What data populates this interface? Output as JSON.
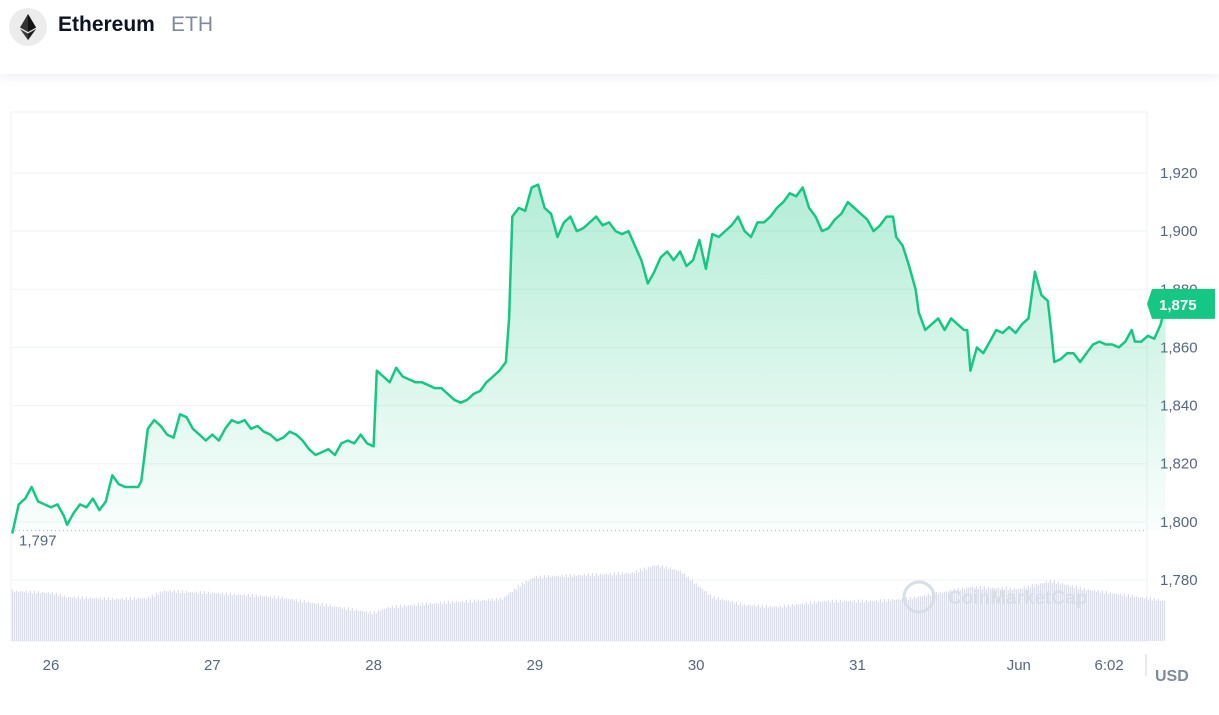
{
  "header": {
    "coin_name": "Ethereum",
    "coin_symbol": "ETH",
    "logo_icon": "ethereum-icon"
  },
  "colors": {
    "line": "#16c784",
    "fill_top": "#16c784",
    "grid": "#eff2f5",
    "volume": "#cfd6e4",
    "text": "#58667e"
  },
  "chart_data": {
    "type": "area",
    "title": "",
    "xlabel": "",
    "ylabel": "USD",
    "currency_label": "USD",
    "ylim": [
      1765,
      1930
    ],
    "y_ticks": [
      1780,
      1800,
      1820,
      1840,
      1860,
      1880,
      1900,
      1920
    ],
    "y_tick_labels": [
      "1,780",
      "1,800",
      "1,820",
      "1,840",
      "1,860",
      "1,880",
      "1,900",
      "1,920"
    ],
    "x_ticks": [
      {
        "t": 0.0,
        "label": "26"
      },
      {
        "t": 1.0,
        "label": "27"
      },
      {
        "t": 2.0,
        "label": "28"
      },
      {
        "t": 3.0,
        "label": "29"
      },
      {
        "t": 4.0,
        "label": "30"
      },
      {
        "t": 5.0,
        "label": "31"
      },
      {
        "t": 6.0,
        "label": "Jun"
      },
      {
        "t": 6.56,
        "label": "6:02"
      }
    ],
    "x_unit": "days since May 26",
    "current_price": 1875,
    "current_price_label": "1,875",
    "open_price": 1797,
    "open_price_label": "1,797",
    "watermark": "CoinMarketCap",
    "series": [
      {
        "name": "Price",
        "points": [
          [
            -0.24,
            1796
          ],
          [
            -0.2,
            1806
          ],
          [
            -0.16,
            1808
          ],
          [
            -0.12,
            1812
          ],
          [
            -0.08,
            1807
          ],
          [
            -0.04,
            1806
          ],
          [
            0.0,
            1805
          ],
          [
            0.04,
            1806
          ],
          [
            0.08,
            1802
          ],
          [
            0.1,
            1799
          ],
          [
            0.14,
            1803
          ],
          [
            0.18,
            1806
          ],
          [
            0.22,
            1805
          ],
          [
            0.26,
            1808
          ],
          [
            0.3,
            1804
          ],
          [
            0.34,
            1807
          ],
          [
            0.38,
            1816
          ],
          [
            0.42,
            1813
          ],
          [
            0.46,
            1812
          ],
          [
            0.5,
            1812
          ],
          [
            0.54,
            1812
          ],
          [
            0.56,
            1814
          ],
          [
            0.6,
            1832
          ],
          [
            0.64,
            1835
          ],
          [
            0.68,
            1833
          ],
          [
            0.72,
            1830
          ],
          [
            0.76,
            1829
          ],
          [
            0.8,
            1837
          ],
          [
            0.84,
            1836
          ],
          [
            0.88,
            1832
          ],
          [
            0.92,
            1830
          ],
          [
            0.96,
            1828
          ],
          [
            1.0,
            1830
          ],
          [
            1.04,
            1828
          ],
          [
            1.08,
            1832
          ],
          [
            1.12,
            1835
          ],
          [
            1.16,
            1834
          ],
          [
            1.2,
            1835
          ],
          [
            1.24,
            1832
          ],
          [
            1.28,
            1833
          ],
          [
            1.32,
            1831
          ],
          [
            1.36,
            1830
          ],
          [
            1.4,
            1828
          ],
          [
            1.44,
            1829
          ],
          [
            1.48,
            1831
          ],
          [
            1.52,
            1830
          ],
          [
            1.56,
            1828
          ],
          [
            1.6,
            1825
          ],
          [
            1.64,
            1823
          ],
          [
            1.68,
            1824
          ],
          [
            1.72,
            1825
          ],
          [
            1.76,
            1823
          ],
          [
            1.8,
            1827
          ],
          [
            1.84,
            1828
          ],
          [
            1.88,
            1827
          ],
          [
            1.92,
            1830
          ],
          [
            1.96,
            1827
          ],
          [
            2.0,
            1826
          ],
          [
            2.02,
            1852
          ],
          [
            2.06,
            1850
          ],
          [
            2.1,
            1848
          ],
          [
            2.14,
            1853
          ],
          [
            2.18,
            1850
          ],
          [
            2.22,
            1849
          ],
          [
            2.26,
            1848
          ],
          [
            2.3,
            1848
          ],
          [
            2.34,
            1847
          ],
          [
            2.38,
            1846
          ],
          [
            2.42,
            1846
          ],
          [
            2.46,
            1844
          ],
          [
            2.5,
            1842
          ],
          [
            2.54,
            1841
          ],
          [
            2.58,
            1842
          ],
          [
            2.62,
            1844
          ],
          [
            2.66,
            1845
          ],
          [
            2.7,
            1848
          ],
          [
            2.74,
            1850
          ],
          [
            2.78,
            1852
          ],
          [
            2.82,
            1855
          ],
          [
            2.84,
            1870
          ],
          [
            2.86,
            1905
          ],
          [
            2.9,
            1908
          ],
          [
            2.94,
            1907
          ],
          [
            2.98,
            1915
          ],
          [
            3.02,
            1916
          ],
          [
            3.06,
            1908
          ],
          [
            3.1,
            1906
          ],
          [
            3.14,
            1898
          ],
          [
            3.18,
            1903
          ],
          [
            3.22,
            1905
          ],
          [
            3.26,
            1900
          ],
          [
            3.3,
            1901
          ],
          [
            3.34,
            1903
          ],
          [
            3.38,
            1905
          ],
          [
            3.42,
            1902
          ],
          [
            3.46,
            1903
          ],
          [
            3.5,
            1900
          ],
          [
            3.54,
            1899
          ],
          [
            3.58,
            1900
          ],
          [
            3.62,
            1895
          ],
          [
            3.66,
            1890
          ],
          [
            3.7,
            1882
          ],
          [
            3.74,
            1886
          ],
          [
            3.78,
            1891
          ],
          [
            3.82,
            1893
          ],
          [
            3.86,
            1890
          ],
          [
            3.9,
            1893
          ],
          [
            3.94,
            1888
          ],
          [
            3.98,
            1890
          ],
          [
            4.02,
            1897
          ],
          [
            4.06,
            1887
          ],
          [
            4.1,
            1899
          ],
          [
            4.14,
            1898
          ],
          [
            4.18,
            1900
          ],
          [
            4.22,
            1902
          ],
          [
            4.26,
            1905
          ],
          [
            4.3,
            1900
          ],
          [
            4.34,
            1898
          ],
          [
            4.38,
            1903
          ],
          [
            4.42,
            1903
          ],
          [
            4.46,
            1905
          ],
          [
            4.5,
            1908
          ],
          [
            4.54,
            1910
          ],
          [
            4.58,
            1913
          ],
          [
            4.62,
            1912
          ],
          [
            4.66,
            1915
          ],
          [
            4.7,
            1908
          ],
          [
            4.74,
            1905
          ],
          [
            4.78,
            1900
          ],
          [
            4.82,
            1901
          ],
          [
            4.86,
            1904
          ],
          [
            4.9,
            1906
          ],
          [
            4.94,
            1910
          ],
          [
            4.98,
            1908
          ],
          [
            5.02,
            1906
          ],
          [
            5.06,
            1904
          ],
          [
            5.1,
            1900
          ],
          [
            5.14,
            1902
          ],
          [
            5.18,
            1905
          ],
          [
            5.22,
            1905
          ],
          [
            5.24,
            1898
          ],
          [
            5.28,
            1895
          ],
          [
            5.32,
            1888
          ],
          [
            5.36,
            1880
          ],
          [
            5.38,
            1872
          ],
          [
            5.42,
            1866
          ],
          [
            5.46,
            1868
          ],
          [
            5.5,
            1870
          ],
          [
            5.54,
            1866
          ],
          [
            5.58,
            1870
          ],
          [
            5.62,
            1868
          ],
          [
            5.66,
            1866
          ],
          [
            5.68,
            1866
          ],
          [
            5.7,
            1852
          ],
          [
            5.74,
            1860
          ],
          [
            5.78,
            1858
          ],
          [
            5.82,
            1862
          ],
          [
            5.86,
            1866
          ],
          [
            5.9,
            1865
          ],
          [
            5.94,
            1867
          ],
          [
            5.98,
            1865
          ],
          [
            6.02,
            1868
          ],
          [
            6.06,
            1870
          ],
          [
            6.08,
            1878
          ],
          [
            6.1,
            1886
          ],
          [
            6.14,
            1878
          ],
          [
            6.18,
            1876
          ],
          [
            6.2,
            1866
          ],
          [
            6.22,
            1855
          ],
          [
            6.26,
            1856
          ],
          [
            6.3,
            1858
          ],
          [
            6.34,
            1858
          ],
          [
            6.38,
            1855
          ],
          [
            6.42,
            1858
          ],
          [
            6.46,
            1861
          ],
          [
            6.5,
            1862
          ],
          [
            6.54,
            1861
          ],
          [
            6.58,
            1861
          ],
          [
            6.62,
            1860
          ],
          [
            6.66,
            1862
          ],
          [
            6.7,
            1866
          ],
          [
            6.72,
            1862
          ],
          [
            6.76,
            1862
          ],
          [
            6.8,
            1864
          ],
          [
            6.84,
            1863
          ],
          [
            6.88,
            1868
          ],
          [
            6.91,
            1875
          ]
        ]
      },
      {
        "name": "Volume",
        "points": [
          [
            -0.24,
            0.5
          ],
          [
            0.0,
            0.48
          ],
          [
            0.1,
            0.44
          ],
          [
            0.4,
            0.42
          ],
          [
            0.6,
            0.43
          ],
          [
            0.7,
            0.5
          ],
          [
            1.0,
            0.48
          ],
          [
            1.4,
            0.44
          ],
          [
            1.7,
            0.36
          ],
          [
            2.0,
            0.28
          ],
          [
            2.1,
            0.34
          ],
          [
            2.4,
            0.38
          ],
          [
            2.8,
            0.42
          ],
          [
            2.9,
            0.55
          ],
          [
            3.0,
            0.64
          ],
          [
            3.3,
            0.66
          ],
          [
            3.6,
            0.68
          ],
          [
            3.75,
            0.76
          ],
          [
            3.9,
            0.7
          ],
          [
            4.1,
            0.44
          ],
          [
            4.3,
            0.36
          ],
          [
            4.5,
            0.34
          ],
          [
            4.8,
            0.4
          ],
          [
            5.1,
            0.4
          ],
          [
            5.3,
            0.42
          ],
          [
            5.5,
            0.48
          ],
          [
            5.7,
            0.54
          ],
          [
            6.0,
            0.52
          ],
          [
            6.1,
            0.56
          ],
          [
            6.2,
            0.6
          ],
          [
            6.4,
            0.52
          ],
          [
            6.91,
            0.4
          ]
        ]
      }
    ]
  }
}
